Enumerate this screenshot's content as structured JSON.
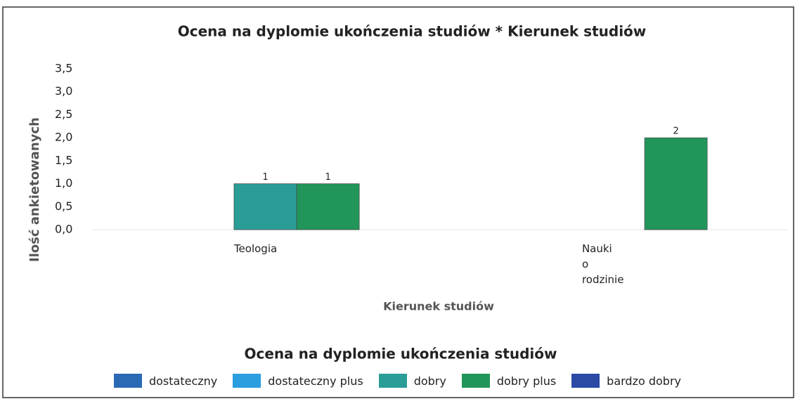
{
  "chart_data": {
    "type": "bar",
    "title": "Ocena na dyplomie ukończenia studiów * Kierunek studiów",
    "x_label": "Kierunek studiów",
    "y_label": "Ilość ankietowanych",
    "legend_title": "Ocena na dyplomie ukończenia studiów",
    "categories": [
      "Teologia",
      "Nauki o rodzinie"
    ],
    "series": [
      {
        "name": "dostateczny",
        "color": "#2a6ab5",
        "values": [
          null,
          null
        ]
      },
      {
        "name": "dostateczny plus",
        "color": "#2b9ee0",
        "values": [
          null,
          null
        ]
      },
      {
        "name": "dobry",
        "color": "#2a9d96",
        "values": [
          1,
          null
        ]
      },
      {
        "name": "dobry plus",
        "color": "#22965a",
        "values": [
          1,
          2
        ]
      },
      {
        "name": "bardzo dobry",
        "color": "#2b4aa6",
        "values": [
          null,
          null
        ]
      }
    ],
    "ylim": [
      0,
      3.5
    ],
    "yticks": [
      {
        "value": 0,
        "label": "0,0"
      },
      {
        "value": 0.5,
        "label": "0,5"
      },
      {
        "value": 1,
        "label": "1,0"
      },
      {
        "value": 1.5,
        "label": "1,5"
      },
      {
        "value": 2,
        "label": "2,0"
      },
      {
        "value": 2.5,
        "label": "2,5"
      },
      {
        "value": 3,
        "label": "3,0"
      },
      {
        "value": 3.5,
        "label": "3,5"
      }
    ],
    "grid": false,
    "legend": "bottom"
  }
}
